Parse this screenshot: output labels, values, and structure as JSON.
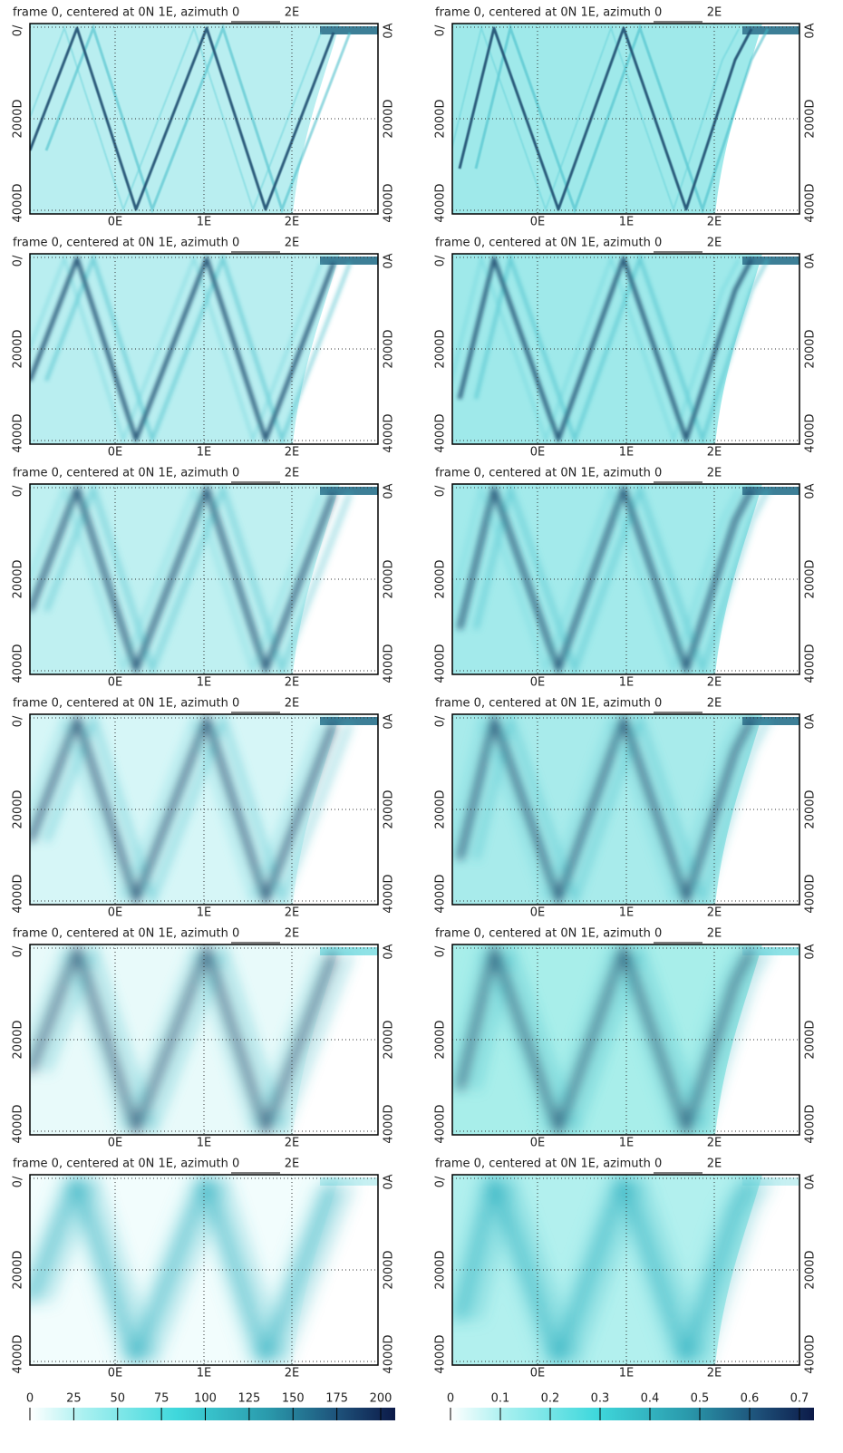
{
  "panels": [
    {
      "title": "frame 0, centered at 0N 1E, azimuth 0",
      "top_label": "2E",
      "left_labels": [
        "0/",
        "2000D",
        "4000D"
      ],
      "right_labels": [
        "0A",
        "2000D",
        "4000D"
      ],
      "x_ticks": [
        "0E",
        "1E",
        "2E"
      ]
    },
    {
      "title": "frame 0, centered at 0N 1E, azimuth 0",
      "top_label": "2E",
      "left_labels": [
        "0/",
        "2000D",
        "4000D"
      ],
      "right_labels": [
        "0A",
        "2000D",
        "4000D"
      ],
      "x_ticks": [
        "0E",
        "1E",
        "2E"
      ]
    },
    {
      "title": "frame 0, centered at 0N 1E, azimuth 0",
      "top_label": "2E",
      "left_labels": [
        "0/",
        "2000D",
        "4000D"
      ],
      "right_labels": [
        "0A",
        "2000D",
        "4000D"
      ],
      "x_ticks": [
        "0E",
        "1E",
        "2E"
      ]
    },
    {
      "title": "frame 0, centered at 0N 1E, azimuth 0",
      "top_label": "2E",
      "left_labels": [
        "0/",
        "2000D",
        "4000D"
      ],
      "right_labels": [
        "0A",
        "2000D",
        "4000D"
      ],
      "x_ticks": [
        "0E",
        "1E",
        "2E"
      ]
    },
    {
      "title": "frame 0, centered at 0N 1E, azimuth 0",
      "top_label": "2E",
      "left_labels": [
        "0/",
        "2000D",
        "4000D"
      ],
      "right_labels": [
        "0A",
        "2000D",
        "4000D"
      ],
      "x_ticks": [
        "0E",
        "1E",
        "2E"
      ]
    },
    {
      "title": "frame 0, centered at 0N 1E, azimuth 0",
      "top_label": "2E",
      "left_labels": [
        "0/",
        "2000D",
        "4000D"
      ],
      "right_labels": [
        "0A",
        "2000D",
        "4000D"
      ],
      "x_ticks": [
        "0E",
        "1E",
        "2E"
      ]
    },
    {
      "title": "frame 0, centered at 0N 1E, azimuth 0",
      "top_label": "2E",
      "left_labels": [
        "0/",
        "2000D",
        "4000D"
      ],
      "right_labels": [
        "0A",
        "2000D",
        "4000D"
      ],
      "x_ticks": [
        "0E",
        "1E",
        "2E"
      ]
    },
    {
      "title": "frame 0, centered at 0N 1E, azimuth 0",
      "top_label": "2E",
      "left_labels": [
        "0/",
        "2000D",
        "4000D"
      ],
      "right_labels": [
        "0A",
        "2000D",
        "4000D"
      ],
      "x_ticks": [
        "0E",
        "1E",
        "2E"
      ]
    },
    {
      "title": "frame 0, centered at 0N 1E, azimuth 0",
      "top_label": "2E",
      "left_labels": [
        "0/",
        "2000D",
        "4000D"
      ],
      "right_labels": [
        "0A",
        "2000D",
        "4000D"
      ],
      "x_ticks": [
        "0E",
        "1E",
        "2E"
      ]
    },
    {
      "title": "frame 0, centered at 0N 1E, azimuth 0",
      "top_label": "2E",
      "left_labels": [
        "0/",
        "2000D",
        "4000D"
      ],
      "right_labels": [
        "0A",
        "2000D",
        "4000D"
      ],
      "x_ticks": [
        "0E",
        "1E",
        "2E"
      ]
    },
    {
      "title": "frame 0, centered at 0N 1E, azimuth 0",
      "top_label": "2E",
      "left_labels": [
        "0/",
        "2000D",
        "4000D"
      ],
      "right_labels": [
        "0A",
        "2000D",
        "4000D"
      ],
      "x_ticks": [
        "0E",
        "1E",
        "2E"
      ]
    },
    {
      "title": "frame 0, centered at 0N 1E, azimuth 0",
      "top_label": "2E",
      "left_labels": [
        "0/",
        "2000D",
        "4000D"
      ],
      "right_labels": [
        "0A",
        "2000D",
        "4000D"
      ],
      "x_ticks": [
        "0E",
        "1E",
        "2E"
      ]
    }
  ],
  "colorbars": [
    {
      "lim": [
        0,
        200
      ],
      "ticks": [
        0,
        25,
        50,
        75,
        100,
        125,
        150,
        175,
        200
      ]
    },
    {
      "lim": [
        0,
        0.7
      ],
      "ticks": [
        0,
        0.1,
        0.2,
        0.3,
        0.4,
        0.5,
        0.6,
        0.7
      ]
    }
  ]
}
